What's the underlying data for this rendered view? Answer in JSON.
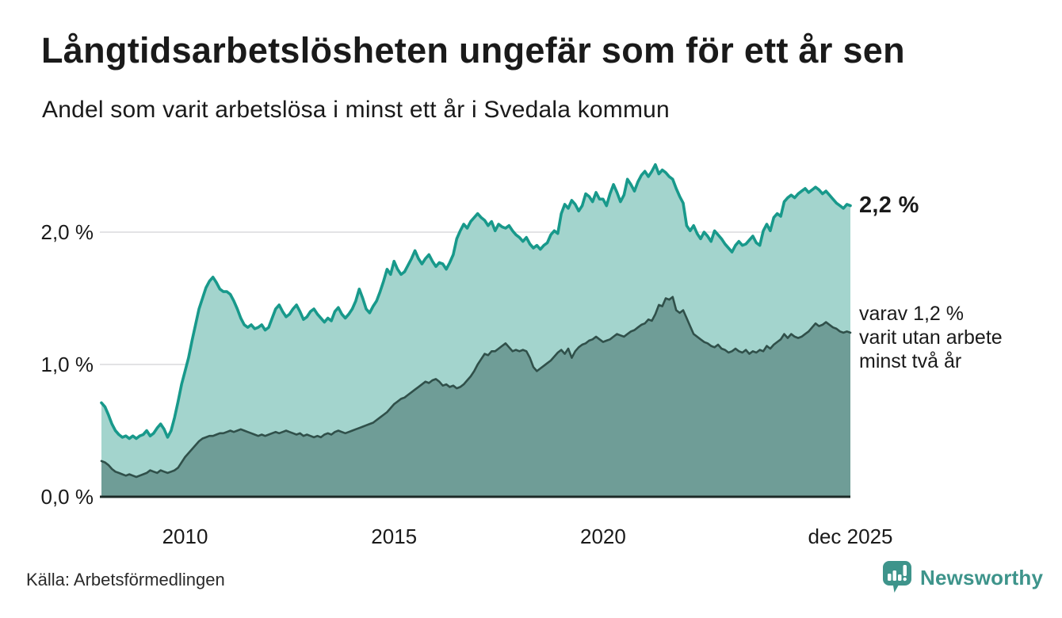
{
  "header": {
    "title": "Långtidsarbetslösheten ungefär som för ett år sen",
    "subtitle": "Andel som varit arbetslösa i minst ett år i Svedala kommun"
  },
  "chart_data": {
    "type": "area",
    "title": "Långtidsarbetslösheten ungefär som för ett år sen",
    "subtitle": "Andel som varit arbetslösa i minst ett år i Svedala kommun",
    "unit": "%",
    "xlabel": "",
    "ylabel": "",
    "ylim": [
      0,
      2.6
    ],
    "x_range": "jan 2008 – dec 2025 (monthly)",
    "grid": true,
    "y_ticks": [
      {
        "value": 0,
        "label": "0,0 %"
      },
      {
        "value": 1,
        "label": "1,0 %"
      },
      {
        "value": 2,
        "label": "2,0 %"
      }
    ],
    "x_ticks": [
      {
        "month_index": 24,
        "label": "2010"
      },
      {
        "month_index": 84,
        "label": "2015"
      },
      {
        "month_index": 144,
        "label": "2020"
      },
      {
        "month_index": 215,
        "label": "dec 2025"
      }
    ],
    "series": [
      {
        "name": "Andel arbetslösa minst ett år",
        "line_color": "#18998b",
        "fill_color": "#a3d4cd",
        "end_value": 2.2,
        "end_label": "2,2 %",
        "values": [
          0.71,
          0.68,
          0.62,
          0.55,
          0.5,
          0.47,
          0.45,
          0.46,
          0.44,
          0.46,
          0.44,
          0.46,
          0.47,
          0.5,
          0.46,
          0.48,
          0.52,
          0.55,
          0.51,
          0.45,
          0.5,
          0.6,
          0.72,
          0.85,
          0.95,
          1.05,
          1.18,
          1.3,
          1.42,
          1.5,
          1.58,
          1.63,
          1.66,
          1.62,
          1.57,
          1.55,
          1.55,
          1.53,
          1.48,
          1.42,
          1.35,
          1.3,
          1.28,
          1.3,
          1.27,
          1.28,
          1.3,
          1.26,
          1.28,
          1.35,
          1.42,
          1.45,
          1.4,
          1.36,
          1.38,
          1.42,
          1.45,
          1.4,
          1.34,
          1.36,
          1.4,
          1.42,
          1.38,
          1.35,
          1.32,
          1.35,
          1.33,
          1.4,
          1.43,
          1.38,
          1.35,
          1.38,
          1.42,
          1.48,
          1.57,
          1.5,
          1.42,
          1.39,
          1.44,
          1.48,
          1.55,
          1.63,
          1.72,
          1.68,
          1.78,
          1.72,
          1.68,
          1.7,
          1.75,
          1.8,
          1.86,
          1.8,
          1.76,
          1.8,
          1.83,
          1.78,
          1.74,
          1.77,
          1.76,
          1.72,
          1.77,
          1.83,
          1.95,
          2.01,
          2.06,
          2.03,
          2.08,
          2.11,
          2.14,
          2.11,
          2.09,
          2.05,
          2.08,
          2.01,
          2.06,
          2.04,
          2.03,
          2.05,
          2.01,
          1.98,
          1.96,
          1.93,
          1.96,
          1.91,
          1.88,
          1.9,
          1.87,
          1.9,
          1.92,
          1.98,
          2.01,
          1.99,
          2.14,
          2.21,
          2.18,
          2.24,
          2.21,
          2.16,
          2.2,
          2.29,
          2.27,
          2.23,
          2.3,
          2.25,
          2.25,
          2.2,
          2.29,
          2.36,
          2.3,
          2.23,
          2.28,
          2.4,
          2.36,
          2.31,
          2.38,
          2.43,
          2.46,
          2.42,
          2.46,
          2.51,
          2.44,
          2.47,
          2.45,
          2.42,
          2.4,
          2.33,
          2.27,
          2.22,
          2.05,
          2.01,
          2.05,
          1.99,
          1.95,
          2.0,
          1.97,
          1.93,
          2.01,
          1.98,
          1.95,
          1.91,
          1.88,
          1.85,
          1.9,
          1.93,
          1.9,
          1.91,
          1.94,
          1.97,
          1.92,
          1.9,
          2.01,
          2.06,
          2.01,
          2.11,
          2.14,
          2.12,
          2.23,
          2.26,
          2.28,
          2.26,
          2.29,
          2.31,
          2.33,
          2.3,
          2.32,
          2.34,
          2.32,
          2.29,
          2.31,
          2.28,
          2.25,
          2.22,
          2.2,
          2.18,
          2.21,
          2.2
        ]
      },
      {
        "name": "varav utan arbete minst två år",
        "line_color": "#30504a",
        "fill_color": "#6f9d97",
        "end_value": 1.2,
        "end_label": "varav 1,2 %\nvarit utan arbete\nminst två år",
        "values": [
          0.27,
          0.26,
          0.24,
          0.21,
          0.19,
          0.18,
          0.17,
          0.16,
          0.17,
          0.16,
          0.15,
          0.16,
          0.17,
          0.18,
          0.2,
          0.19,
          0.18,
          0.2,
          0.19,
          0.18,
          0.19,
          0.2,
          0.22,
          0.26,
          0.3,
          0.33,
          0.36,
          0.39,
          0.42,
          0.44,
          0.45,
          0.46,
          0.46,
          0.47,
          0.48,
          0.48,
          0.49,
          0.5,
          0.49,
          0.5,
          0.51,
          0.5,
          0.49,
          0.48,
          0.47,
          0.46,
          0.47,
          0.46,
          0.47,
          0.48,
          0.49,
          0.48,
          0.49,
          0.5,
          0.49,
          0.48,
          0.47,
          0.48,
          0.46,
          0.47,
          0.46,
          0.45,
          0.46,
          0.45,
          0.47,
          0.48,
          0.47,
          0.49,
          0.5,
          0.49,
          0.48,
          0.49,
          0.5,
          0.51,
          0.52,
          0.53,
          0.54,
          0.55,
          0.56,
          0.58,
          0.6,
          0.62,
          0.64,
          0.67,
          0.7,
          0.72,
          0.74,
          0.75,
          0.77,
          0.79,
          0.81,
          0.83,
          0.85,
          0.87,
          0.86,
          0.88,
          0.89,
          0.87,
          0.84,
          0.85,
          0.83,
          0.84,
          0.82,
          0.83,
          0.85,
          0.88,
          0.91,
          0.95,
          1.0,
          1.04,
          1.08,
          1.07,
          1.1,
          1.1,
          1.12,
          1.14,
          1.16,
          1.13,
          1.1,
          1.11,
          1.1,
          1.11,
          1.1,
          1.05,
          0.98,
          0.95,
          0.97,
          0.99,
          1.01,
          1.03,
          1.06,
          1.09,
          1.11,
          1.08,
          1.12,
          1.05,
          1.1,
          1.13,
          1.15,
          1.16,
          1.18,
          1.19,
          1.21,
          1.19,
          1.17,
          1.18,
          1.19,
          1.21,
          1.23,
          1.22,
          1.21,
          1.23,
          1.25,
          1.26,
          1.28,
          1.3,
          1.31,
          1.34,
          1.33,
          1.38,
          1.45,
          1.44,
          1.5,
          1.49,
          1.51,
          1.41,
          1.39,
          1.41,
          1.35,
          1.29,
          1.23,
          1.21,
          1.19,
          1.17,
          1.16,
          1.14,
          1.13,
          1.15,
          1.12,
          1.11,
          1.09,
          1.1,
          1.12,
          1.1,
          1.09,
          1.11,
          1.08,
          1.1,
          1.09,
          1.11,
          1.1,
          1.14,
          1.12,
          1.15,
          1.17,
          1.19,
          1.23,
          1.2,
          1.23,
          1.21,
          1.2,
          1.21,
          1.23,
          1.25,
          1.28,
          1.31,
          1.29,
          1.3,
          1.32,
          1.3,
          1.28,
          1.27,
          1.25,
          1.24,
          1.25,
          1.24
        ]
      }
    ],
    "colors": {
      "grid": "#e3e3e5",
      "axis": "#1c2a27",
      "text": "#1a1a1a",
      "brand": "#3e948b"
    }
  },
  "footer": {
    "source": "Källa: Arbetsförmedlingen",
    "brand": "Newsworthy"
  }
}
